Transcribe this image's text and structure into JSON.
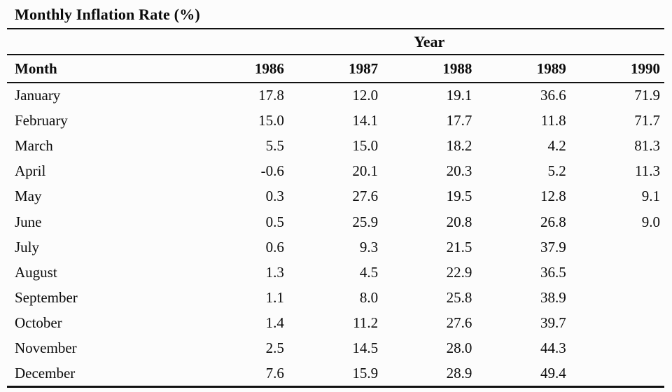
{
  "title": "Monthly Inflation Rate (%)",
  "table": {
    "group_header": "Year",
    "col_month": "Month",
    "years": [
      "1986",
      "1987",
      "1988",
      "1989",
      "1990"
    ],
    "rows": [
      {
        "month": "January",
        "v": [
          "17.8",
          "12.0",
          "19.1",
          "36.6",
          "71.9"
        ]
      },
      {
        "month": "February",
        "v": [
          "15.0",
          "14.1",
          "17.7",
          "11.8",
          "71.7"
        ]
      },
      {
        "month": "March",
        "v": [
          "5.5",
          "15.0",
          "18.2",
          "4.2",
          "81.3"
        ]
      },
      {
        "month": "April",
        "v": [
          "-0.6",
          "20.1",
          "20.3",
          "5.2",
          "11.3"
        ]
      },
      {
        "month": "May",
        "v": [
          "0.3",
          "27.6",
          "19.5",
          "12.8",
          "9.1"
        ]
      },
      {
        "month": "June",
        "v": [
          "0.5",
          "25.9",
          "20.8",
          "26.8",
          "9.0"
        ]
      },
      {
        "month": "July",
        "v": [
          "0.6",
          "9.3",
          "21.5",
          "37.9",
          ""
        ]
      },
      {
        "month": "August",
        "v": [
          "1.3",
          "4.5",
          "22.9",
          "36.5",
          ""
        ]
      },
      {
        "month": "September",
        "v": [
          "1.1",
          "8.0",
          "25.8",
          "38.9",
          ""
        ]
      },
      {
        "month": "October",
        "v": [
          "1.4",
          "11.2",
          "27.6",
          "39.7",
          ""
        ]
      },
      {
        "month": "November",
        "v": [
          "2.5",
          "14.5",
          "28.0",
          "44.3",
          ""
        ]
      },
      {
        "month": "December",
        "v": [
          "7.6",
          "15.9",
          "28.9",
          "49.4",
          ""
        ]
      }
    ]
  },
  "colors": {
    "background": "#fcfcfc",
    "text": "#0b0b0b",
    "rule": "#111111"
  },
  "chart_data": {
    "type": "table",
    "title": "Monthly Inflation Rate (%)",
    "column_group_label": "Year",
    "row_label": "Month",
    "categories": [
      "January",
      "February",
      "March",
      "April",
      "May",
      "June",
      "July",
      "August",
      "September",
      "October",
      "November",
      "December"
    ],
    "series": [
      {
        "name": "1986",
        "values": [
          17.8,
          15.0,
          5.5,
          -0.6,
          0.3,
          0.5,
          0.6,
          1.3,
          1.1,
          1.4,
          2.5,
          7.6
        ]
      },
      {
        "name": "1987",
        "values": [
          12.0,
          14.1,
          15.0,
          20.1,
          27.6,
          25.9,
          9.3,
          4.5,
          8.0,
          11.2,
          14.5,
          15.9
        ]
      },
      {
        "name": "1988",
        "values": [
          19.1,
          17.7,
          18.2,
          20.3,
          19.5,
          20.8,
          21.5,
          22.9,
          25.8,
          27.6,
          28.0,
          28.9
        ]
      },
      {
        "name": "1989",
        "values": [
          36.6,
          11.8,
          4.2,
          5.2,
          12.8,
          26.8,
          37.9,
          36.5,
          38.9,
          39.7,
          44.3,
          49.4
        ]
      },
      {
        "name": "1990",
        "values": [
          71.9,
          71.7,
          81.3,
          11.3,
          9.1,
          9.0,
          null,
          null,
          null,
          null,
          null,
          null
        ]
      }
    ]
  }
}
